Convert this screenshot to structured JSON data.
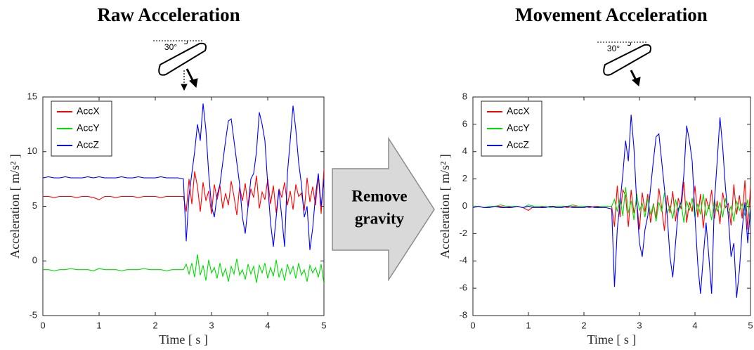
{
  "chart_data": [
    {
      "type": "line",
      "title": "Raw Acceleration",
      "annotation": "30°",
      "xlabel": "Time [ s ]",
      "ylabel": "Acceleration [ m/s² ]",
      "xlim": [
        0,
        5
      ],
      "xticks": [
        0,
        1,
        2,
        3,
        4,
        5
      ],
      "ylim": [
        -5,
        15
      ],
      "yticks": [
        -5,
        0,
        5,
        10,
        15
      ],
      "legend": "upper left",
      "x": [
        0,
        0.1,
        0.2,
        0.3,
        0.4,
        0.5,
        0.6,
        0.7,
        0.8,
        0.9,
        1.0,
        1.1,
        1.2,
        1.3,
        1.4,
        1.5,
        1.6,
        1.7,
        1.8,
        1.9,
        2.0,
        2.1,
        2.2,
        2.3,
        2.4,
        2.5,
        2.55,
        2.6,
        2.65,
        2.7,
        2.75,
        2.8,
        2.85,
        2.9,
        2.95,
        3.0,
        3.05,
        3.1,
        3.15,
        3.2,
        3.25,
        3.3,
        3.35,
        3.4,
        3.45,
        3.5,
        3.55,
        3.6,
        3.65,
        3.7,
        3.75,
        3.8,
        3.85,
        3.9,
        3.95,
        4.0,
        4.05,
        4.1,
        4.15,
        4.2,
        4.25,
        4.3,
        4.35,
        4.4,
        4.45,
        4.5,
        4.55,
        4.6,
        4.65,
        4.7,
        4.75,
        4.8,
        4.85,
        4.9,
        4.95,
        5.0
      ],
      "series": [
        {
          "name": "AccX",
          "color": "#ff0000",
          "values": [
            5.9,
            5.9,
            5.8,
            5.9,
            5.9,
            5.9,
            5.8,
            5.9,
            5.9,
            5.8,
            5.6,
            5.9,
            5.9,
            5.8,
            5.9,
            5.9,
            5.9,
            5.8,
            5.9,
            5.9,
            5.9,
            5.8,
            5.9,
            5.9,
            5.9,
            5.9,
            4.5,
            7.5,
            5.2,
            8.2,
            6.8,
            4.5,
            7.2,
            5.5,
            6.4,
            4.3,
            7,
            5.6,
            6.9,
            4.8,
            6.2,
            5.1,
            7.3,
            5.9,
            4.2,
            6.8,
            5.5,
            7.1,
            4.9,
            6.6,
            5.8,
            7.8,
            4.8,
            6.3,
            5.6,
            7.5,
            5.2,
            6.9,
            4.4,
            6.6,
            5.8,
            7.2,
            5.1,
            6.4,
            4.7,
            7,
            5.9,
            6.2,
            4.6,
            7.6,
            5.4,
            6.8,
            5.1,
            7.9,
            4.3,
            8.4
          ]
        },
        {
          "name": "AccY",
          "color": "#00dd00",
          "values": [
            -0.8,
            -0.8,
            -0.9,
            -0.8,
            -0.8,
            -0.7,
            -0.8,
            -0.8,
            -0.8,
            -0.9,
            -0.7,
            -0.8,
            -0.8,
            -0.8,
            -0.9,
            -0.8,
            -0.8,
            -0.8,
            -0.7,
            -0.8,
            -0.8,
            -0.8,
            -0.9,
            -0.8,
            -0.8,
            -0.8,
            -0.3,
            -1.2,
            -0.2,
            -1.5,
            0.6,
            -1.3,
            -0.4,
            -1.8,
            0.1,
            -1.1,
            -0.6,
            -1.6,
            -0.2,
            -1.4,
            -0.7,
            -1.9,
            -0.5,
            -1.2,
            0.2,
            -1.3,
            -0.8,
            -1.7,
            -0.3,
            -1.2,
            -0.5,
            -2,
            -0.4,
            -1.1,
            -0.2,
            -1.6,
            -0.6,
            -1.4,
            0.1,
            -1.5,
            -0.7,
            -1.8,
            -0.3,
            -1.2,
            -0.5,
            -1.6,
            -0.2,
            -1.3,
            -0.8,
            -1.9,
            -0.4,
            -1.1,
            -0.6,
            -1.5,
            -0.3,
            -2.1
          ]
        },
        {
          "name": "AccZ",
          "color": "#0000ff",
          "values": [
            7.6,
            7.7,
            7.6,
            7.6,
            7.7,
            7.6,
            7.6,
            7.6,
            7.7,
            7.6,
            7.7,
            7.6,
            7.6,
            7.6,
            7.7,
            7.6,
            7.6,
            7.7,
            7.6,
            7.6,
            7.6,
            7.7,
            7.6,
            7.6,
            7.6,
            7.5,
            1.8,
            6,
            8,
            10,
            12.5,
            11,
            14.4,
            12,
            8,
            5,
            4,
            6,
            7,
            9,
            11,
            12.8,
            13,
            11,
            9,
            7,
            4,
            2.5,
            5,
            7.5,
            8,
            10,
            13.6,
            12.5,
            11,
            7,
            3.5,
            1.3,
            4,
            6.5,
            4,
            1.3,
            8,
            11,
            14.2,
            12,
            9,
            7,
            4,
            5,
            1,
            3,
            6,
            8,
            5,
            7.5
          ]
        }
      ]
    },
    {
      "type": "line",
      "title": "Movement Acceleration",
      "annotation": "30°",
      "xlabel": "Time [ s ]",
      "ylabel": "Acceleration [ m/s² ]",
      "xlim": [
        0,
        5
      ],
      "xticks": [
        0,
        1,
        2,
        3,
        4,
        5
      ],
      "ylim": [
        -8,
        8
      ],
      "yticks": [
        -8,
        -6,
        -4,
        -2,
        0,
        2,
        4,
        6,
        8
      ],
      "legend": "upper left",
      "x": [
        0,
        0.1,
        0.2,
        0.3,
        0.4,
        0.5,
        0.6,
        0.7,
        0.8,
        0.9,
        1.0,
        1.1,
        1.2,
        1.3,
        1.4,
        1.5,
        1.6,
        1.7,
        1.8,
        1.9,
        2.0,
        2.1,
        2.2,
        2.3,
        2.4,
        2.5,
        2.55,
        2.6,
        2.65,
        2.7,
        2.75,
        2.8,
        2.85,
        2.9,
        2.95,
        3.0,
        3.05,
        3.1,
        3.15,
        3.2,
        3.25,
        3.3,
        3.35,
        3.4,
        3.45,
        3.5,
        3.55,
        3.6,
        3.65,
        3.7,
        3.75,
        3.8,
        3.85,
        3.9,
        3.95,
        4.0,
        4.05,
        4.1,
        4.15,
        4.2,
        4.25,
        4.3,
        4.35,
        4.4,
        4.45,
        4.5,
        4.55,
        4.6,
        4.65,
        4.7,
        4.75,
        4.8,
        4.85,
        4.9,
        4.95,
        5.0
      ],
      "series": [
        {
          "name": "AccX",
          "color": "#ff0000",
          "values": [
            0,
            0,
            -0.1,
            0,
            0,
            0,
            -0.1,
            0,
            0,
            -0.1,
            -0.3,
            0,
            0,
            -0.1,
            0,
            0,
            0,
            -0.1,
            0,
            0,
            0,
            -0.1,
            0,
            0,
            0,
            0,
            -1.5,
            1.5,
            -0.8,
            1.2,
            0.8,
            -1.5,
            1.2,
            -0.5,
            0.4,
            -1.7,
            1,
            -0.4,
            0.9,
            -1.2,
            0.2,
            -0.9,
            1.3,
            -0.1,
            -1.8,
            0.8,
            -0.5,
            1.1,
            -1.1,
            0.6,
            -0.2,
            1.8,
            -1.2,
            0.3,
            -0.4,
            1.5,
            -0.8,
            0.9,
            -1.6,
            0.6,
            -0.2,
            1.2,
            -0.9,
            0.4,
            -1.3,
            1,
            -0.1,
            0.2,
            -1.4,
            1.6,
            -0.6,
            0.8,
            -0.9,
            1.9,
            -1.7,
            1.4
          ]
        },
        {
          "name": "AccY",
          "color": "#00dd00",
          "values": [
            0,
            0,
            -0.1,
            0,
            0,
            0.1,
            0,
            0,
            0,
            -0.1,
            0.1,
            0,
            0,
            0,
            -0.1,
            0,
            0,
            0,
            0.1,
            0,
            0,
            0,
            -0.1,
            0,
            0,
            0,
            0.5,
            -0.4,
            0.6,
            -0.7,
            1.4,
            -0.5,
            0.4,
            -1,
            0.9,
            -0.3,
            0.2,
            -0.8,
            0.6,
            -0.6,
            0.1,
            -1.1,
            0.3,
            -0.4,
            1,
            -0.5,
            0,
            -0.9,
            0.5,
            -0.4,
            0.3,
            -1.2,
            0.4,
            -0.3,
            0.6,
            -0.8,
            0.2,
            -0.6,
            0.9,
            -0.7,
            0.1,
            -1,
            0.5,
            -0.4,
            0.3,
            -0.8,
            0.6,
            -0.5,
            0,
            -1.1,
            0.4,
            -0.3,
            0.2,
            -0.7,
            0.5,
            -1.3
          ]
        },
        {
          "name": "AccZ",
          "color": "#0000ff",
          "values": [
            -0.1,
            0,
            -0.1,
            -0.1,
            0,
            -0.1,
            -0.1,
            -0.1,
            0,
            -0.1,
            0,
            -0.1,
            -0.1,
            -0.1,
            0,
            -0.1,
            -0.1,
            0,
            -0.1,
            -0.1,
            -0.1,
            0,
            -0.1,
            -0.1,
            -0.1,
            -0.2,
            -5.9,
            -1.7,
            0.3,
            2.3,
            4.8,
            3.3,
            6.7,
            4.3,
            0.3,
            -2.7,
            -3.7,
            -1.7,
            -0.7,
            1.3,
            3.3,
            5.1,
            5.3,
            3.3,
            1.3,
            -0.7,
            -3.7,
            -5.2,
            -2.7,
            -0.2,
            0.3,
            2.3,
            5.9,
            4.8,
            3.3,
            -0.7,
            -4.2,
            -6.4,
            -3.7,
            -1.2,
            -3.7,
            -6.4,
            0.3,
            3.3,
            6.5,
            4.3,
            1.3,
            -0.7,
            -3.7,
            -2.7,
            -6.7,
            -4.7,
            -1.7,
            0.3,
            -2.7,
            -0.2
          ]
        }
      ]
    }
  ],
  "arrow_text": [
    "Remove",
    "gravity"
  ]
}
